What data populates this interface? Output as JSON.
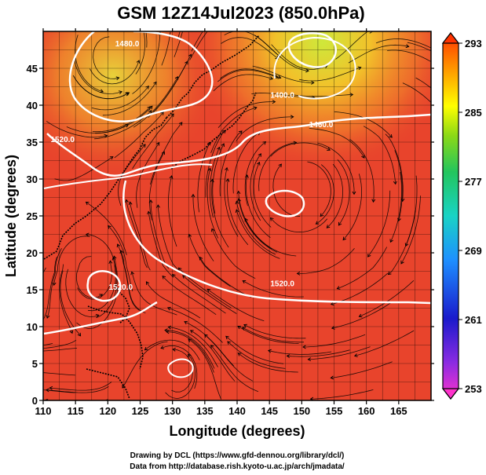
{
  "chart_data": {
    "type": "heatmap",
    "title": "GSM 12Z14Jul2023 (850.0hPa)",
    "xlabel": "Longitude (degrees)",
    "ylabel": "Latitude  (degrees)",
    "xlim": [
      110,
      170
    ],
    "ylim": [
      0,
      50
    ],
    "xticks": [
      "110",
      "115",
      "120",
      "125",
      "130",
      "135",
      "140",
      "145",
      "150",
      "155",
      "160",
      "165"
    ],
    "yticks": [
      "0",
      "5",
      "10",
      "15",
      "20",
      "25",
      "30",
      "35",
      "40",
      "45"
    ],
    "colorbar": {
      "ticks": [
        "293",
        "285",
        "277",
        "269",
        "261",
        "253"
      ],
      "range": [
        253,
        293
      ]
    },
    "contours": [
      {
        "label": "1520.0",
        "lon": 147,
        "lat": 15.5
      },
      {
        "label": "1520.0",
        "lon": 113,
        "lat": 35
      },
      {
        "label": "1400.0",
        "lon": 147,
        "lat": 41
      },
      {
        "label": "1460.0",
        "lon": 153,
        "lat": 37
      },
      {
        "label": "1480.0",
        "lon": 123,
        "lat": 48
      },
      {
        "label": "1520.0",
        "lon": 122,
        "lat": 15
      }
    ],
    "grid": true,
    "overlay": "streamlines (wind)"
  },
  "credits": {
    "line1": "Drawing by DCL (https://www.gfd-dennou.org/library/dcl/)",
    "line2": "Data from http://database.rish.kyoto-u.ac.jp/arch/jmadata/"
  },
  "colors": {
    "warm": "#e8402a",
    "hot": "#ff6a1e",
    "cool_green": "#7ed321",
    "contour": "#ffffff"
  }
}
